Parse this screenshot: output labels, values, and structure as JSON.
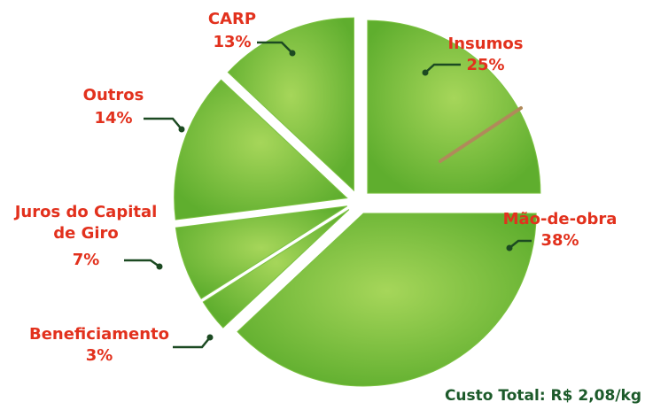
{
  "chart_data": {
    "type": "pie",
    "categories": [
      "Insumos",
      "Mão-de-obra",
      "Beneficiamento",
      "Juros do Capital de Giro",
      "Outros",
      "CARP"
    ],
    "values": [
      25,
      38,
      3,
      7,
      14,
      13
    ],
    "value_labels": [
      "25%",
      "38%",
      "3%",
      "7%",
      "14%",
      "13%"
    ],
    "color": "#7cc242",
    "footnote": "Custo Total: R$ 2,08/kg"
  }
}
